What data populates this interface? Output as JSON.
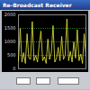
{
  "chart_data": {
    "type": "line",
    "title": "Re-Broadcast Receiver",
    "x": [
      0,
      1,
      2,
      3,
      4,
      5,
      6,
      7,
      8,
      9,
      10,
      11,
      12,
      13,
      14,
      15,
      16,
      17,
      18,
      19,
      20,
      21,
      22,
      23,
      24,
      25,
      26,
      27,
      28,
      29,
      30,
      31,
      32,
      33,
      34,
      35,
      36,
      37,
      38,
      39
    ],
    "values": [
      300,
      1500,
      250,
      600,
      200,
      1300,
      400,
      350,
      1750,
      300,
      500,
      250,
      900,
      1400,
      300,
      450,
      200,
      1100,
      350,
      600,
      1600,
      250,
      400,
      800,
      300,
      1200,
      350,
      500,
      1850,
      300,
      650,
      250,
      1000,
      400,
      1450,
      300,
      550,
      200,
      1300,
      400
    ],
    "color": "#e8e83c",
    "xlim": [
      0,
      39
    ],
    "ylim": [
      0,
      2000
    ],
    "yticks": [
      0,
      500,
      1000,
      1500,
      2000
    ],
    "grid": true,
    "tick_labels": "y"
  }
}
